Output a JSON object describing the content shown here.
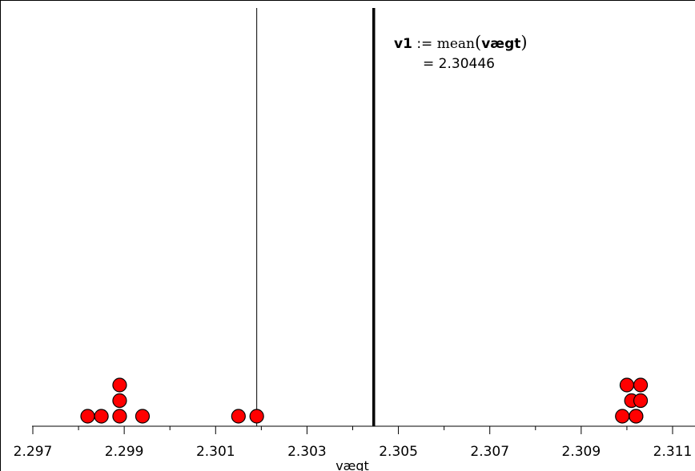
{
  "chart_data": {
    "type": "dot",
    "xlabel": "vægt",
    "xlim": [
      2.2965,
      2.3115
    ],
    "ticks": [
      {
        "value": 2.297,
        "label": "2.297"
      },
      {
        "value": 2.299,
        "label": "2.299"
      },
      {
        "value": 2.301,
        "label": "2.301"
      },
      {
        "value": 2.303,
        "label": "2.303"
      },
      {
        "value": 2.305,
        "label": "2.305"
      },
      {
        "value": 2.307,
        "label": "2.307"
      },
      {
        "value": 2.309,
        "label": "2.309"
      },
      {
        "value": 2.311,
        "label": "2.311"
      }
    ],
    "minor_ticks": [
      2.298,
      2.3,
      2.302,
      2.304,
      2.306,
      2.308,
      2.31
    ],
    "points": [
      {
        "x": 2.2982,
        "stack": 0
      },
      {
        "x": 2.2985,
        "stack": 0
      },
      {
        "x": 2.2989,
        "stack": 0
      },
      {
        "x": 2.2989,
        "stack": 1
      },
      {
        "x": 2.2989,
        "stack": 2
      },
      {
        "x": 2.2994,
        "stack": 0
      },
      {
        "x": 2.3015,
        "stack": 0
      },
      {
        "x": 2.3019,
        "stack": 0
      },
      {
        "x": 2.3099,
        "stack": 0
      },
      {
        "x": 2.3102,
        "stack": 0
      },
      {
        "x": 2.3101,
        "stack": 1
      },
      {
        "x": 2.31,
        "stack": 2
      },
      {
        "x": 2.3102,
        "stack": 0
      },
      {
        "x": 2.3103,
        "stack": 1
      },
      {
        "x": 2.3103,
        "stack": 2
      }
    ],
    "vertical_lines": [
      {
        "x": 2.3019,
        "style": "thin"
      },
      {
        "x": 2.30446,
        "style": "thick"
      }
    ],
    "point_color": "#ff0000",
    "point_stroke": "#000000"
  },
  "formula": {
    "variable": "v1",
    "operator": ":=",
    "function": "mean",
    "argument": "vægt",
    "equals": "=",
    "result": "2.30446"
  }
}
